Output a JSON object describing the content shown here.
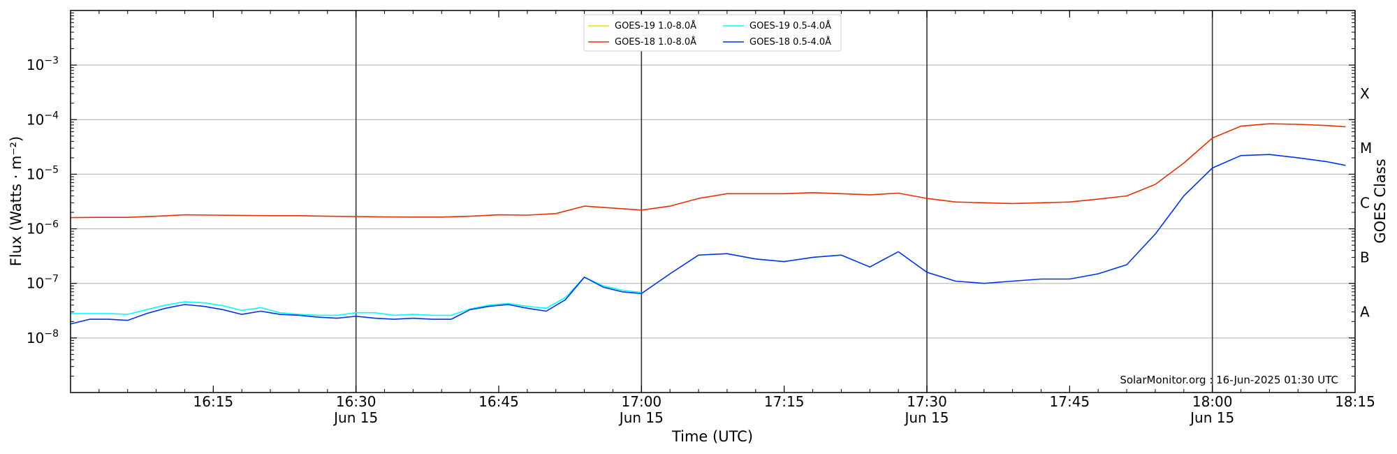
{
  "chart_data": {
    "type": "line",
    "ylabel": "Flux (Watts · m⁻²)",
    "ylabel_sup_hint": "",
    "xlabel": "Time (UTC)",
    "right_label": "GOES Class",
    "y_scale": "log",
    "ylim": [
      1e-09,
      0.01
    ],
    "x_start": "16:00",
    "x_end": "18:15",
    "y_ticks": [
      {
        "value": 1e-08,
        "base": "10",
        "exp": "−8"
      },
      {
        "value": 1e-07,
        "base": "10",
        "exp": "−7"
      },
      {
        "value": 1e-06,
        "base": "10",
        "exp": "−6"
      },
      {
        "value": 1e-05,
        "base": "10",
        "exp": "−5"
      },
      {
        "value": 0.0001,
        "base": "10",
        "exp": "−4"
      },
      {
        "value": 0.001,
        "base": "10",
        "exp": "−3"
      }
    ],
    "x_ticks": [
      {
        "t": "16:15",
        "label": "16:15",
        "date": ""
      },
      {
        "t": "16:30",
        "label": "16:30",
        "date": "Jun 15"
      },
      {
        "t": "16:45",
        "label": "16:45",
        "date": ""
      },
      {
        "t": "17:00",
        "label": "17:00",
        "date": "Jun 15"
      },
      {
        "t": "17:15",
        "label": "17:15",
        "date": ""
      },
      {
        "t": "17:30",
        "label": "17:30",
        "date": "Jun 15"
      },
      {
        "t": "17:45",
        "label": "17:45",
        "date": ""
      },
      {
        "t": "18:00",
        "label": "18:00",
        "date": "Jun 15"
      },
      {
        "t": "18:15",
        "label": "18:15",
        "date": ""
      }
    ],
    "vertical_lines": [
      "16:30",
      "17:00",
      "17:30",
      "18:00"
    ],
    "goes_classes": [
      {
        "label": "A",
        "value": 3e-08
      },
      {
        "label": "B",
        "value": 3e-07
      },
      {
        "label": "C",
        "value": 3e-06
      },
      {
        "label": "M",
        "value": 3e-05
      },
      {
        "label": "X",
        "value": 0.0003
      }
    ],
    "grid": true,
    "legend_position": "top-center",
    "credit": "SolarMonitor.org : 16-Jun-2025 01:30 UTC",
    "series": [
      {
        "name": "GOES-19 1.0-8.0Å",
        "color": "#FFD700",
        "x": [],
        "values": []
      },
      {
        "name": "GOES-18 1.0-8.0Å",
        "color": "#E63000",
        "x": [
          "16:00",
          "16:03",
          "16:06",
          "16:09",
          "16:12",
          "16:15",
          "16:18",
          "16:21",
          "16:24",
          "16:27",
          "16:30",
          "16:33",
          "16:36",
          "16:39",
          "16:42",
          "16:45",
          "16:48",
          "16:51",
          "16:54",
          "16:57",
          "17:00",
          "17:03",
          "17:06",
          "17:09",
          "17:12",
          "17:15",
          "17:18",
          "17:21",
          "17:24",
          "17:27",
          "17:30",
          "17:33",
          "17:36",
          "17:39",
          "17:42",
          "17:45",
          "17:48",
          "17:51",
          "17:54",
          "17:57",
          "18:00",
          "18:03",
          "18:06",
          "18:09",
          "18:12",
          "18:14"
        ],
        "values": [
          1.6e-06,
          1.62e-06,
          1.62e-06,
          1.7e-06,
          1.8e-06,
          1.78e-06,
          1.76e-06,
          1.74e-06,
          1.74e-06,
          1.7e-06,
          1.68e-06,
          1.65e-06,
          1.64e-06,
          1.64e-06,
          1.7e-06,
          1.8e-06,
          1.78e-06,
          1.9e-06,
          2.6e-06,
          2.4e-06,
          2.2e-06,
          2.6e-06,
          3.6e-06,
          4.4e-06,
          4.4e-06,
          4.4e-06,
          4.6e-06,
          4.4e-06,
          4.2e-06,
          4.5e-06,
          3.6e-06,
          3.1e-06,
          3e-06,
          2.9e-06,
          3e-06,
          3.1e-06,
          3.5e-06,
          4e-06,
          6.5e-06,
          1.6e-05,
          4.6e-05,
          7.6e-05,
          8.4e-05,
          8.2e-05,
          7.8e-05,
          7.4e-05
        ]
      },
      {
        "name": "GOES-19 0.5-4.0Å",
        "color": "#00FFFF",
        "x": [
          "16:00",
          "16:02",
          "16:04",
          "16:06",
          "16:08",
          "16:10",
          "16:12",
          "16:14",
          "16:16",
          "16:18",
          "16:20",
          "16:22",
          "16:24",
          "16:26",
          "16:28",
          "16:30",
          "16:32",
          "16:34",
          "16:36",
          "16:38",
          "16:40",
          "16:42",
          "16:44",
          "16:46",
          "16:48",
          "16:50",
          "16:52",
          "16:54",
          "16:56",
          "16:58",
          "17:00"
        ],
        "values": [
          2.8e-08,
          2.8e-08,
          2.8e-08,
          2.7e-08,
          3.3e-08,
          4e-08,
          4.6e-08,
          4.4e-08,
          3.9e-08,
          3.2e-08,
          3.6e-08,
          2.9e-08,
          2.7e-08,
          2.6e-08,
          2.6e-08,
          2.9e-08,
          2.9e-08,
          2.6e-08,
          2.7e-08,
          2.6e-08,
          2.6e-08,
          3.4e-08,
          4e-08,
          4.3e-08,
          3.8e-08,
          3.5e-08,
          5.5e-08,
          1.3e-07,
          9e-08,
          7.5e-08,
          6.8e-08
        ]
      },
      {
        "name": "GOES-18 0.5-4.0Å",
        "color": "#0033E6",
        "x": [
          "16:00",
          "16:02",
          "16:04",
          "16:06",
          "16:08",
          "16:10",
          "16:12",
          "16:14",
          "16:16",
          "16:18",
          "16:20",
          "16:22",
          "16:24",
          "16:26",
          "16:28",
          "16:30",
          "16:32",
          "16:34",
          "16:36",
          "16:38",
          "16:40",
          "16:42",
          "16:44",
          "16:46",
          "16:48",
          "16:50",
          "16:52",
          "16:54",
          "16:56",
          "16:58",
          "17:00",
          "17:03",
          "17:06",
          "17:09",
          "17:12",
          "17:15",
          "17:18",
          "17:21",
          "17:24",
          "17:27",
          "17:30",
          "17:33",
          "17:36",
          "17:39",
          "17:42",
          "17:45",
          "17:48",
          "17:51",
          "17:54",
          "17:57",
          "18:00",
          "18:03",
          "18:06",
          "18:09",
          "18:12",
          "18:14"
        ],
        "values": [
          1.8e-08,
          2.2e-08,
          2.2e-08,
          2.1e-08,
          2.8e-08,
          3.5e-08,
          4.1e-08,
          3.8e-08,
          3.3e-08,
          2.7e-08,
          3.1e-08,
          2.7e-08,
          2.6e-08,
          2.4e-08,
          2.3e-08,
          2.5e-08,
          2.3e-08,
          2.2e-08,
          2.3e-08,
          2.2e-08,
          2.2e-08,
          3.3e-08,
          3.8e-08,
          4.1e-08,
          3.5e-08,
          3.1e-08,
          5e-08,
          1.3e-07,
          8.5e-08,
          7e-08,
          6.5e-08,
          1.5e-07,
          3.3e-07,
          3.5e-07,
          2.8e-07,
          2.5e-07,
          3e-07,
          3.3e-07,
          2e-07,
          3.8e-07,
          1.6e-07,
          1.1e-07,
          1e-07,
          1.1e-07,
          1.2e-07,
          1.2e-07,
          1.5e-07,
          2.2e-07,
          8e-07,
          4e-06,
          1.3e-05,
          2.2e-05,
          2.3e-05,
          2e-05,
          1.7e-05,
          1.45e-05
        ]
      }
    ]
  }
}
